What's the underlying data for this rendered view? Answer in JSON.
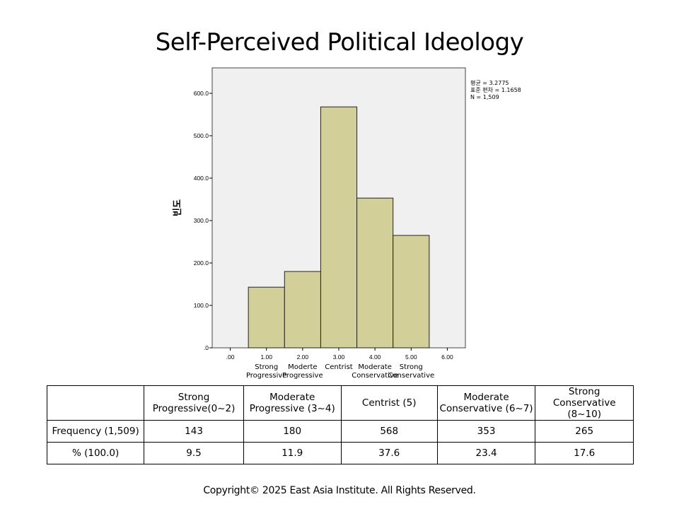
{
  "title": "Self-Perceived Political Ideology",
  "chart_data": {
    "type": "bar",
    "ylabel": "빈도",
    "ylim": [
      0,
      660
    ],
    "xlim": [
      -0.5,
      6.5
    ],
    "yticks": [
      ".0",
      "100.0",
      "200.0",
      "300.0",
      "400.0",
      "500.0",
      "600.0"
    ],
    "xticks": [
      ".00",
      "1.00",
      "2.00",
      "3.00",
      "4.00",
      "5.00",
      "6.00"
    ],
    "bins": [
      {
        "x0": 0.5,
        "x1": 1.5,
        "value": 143
      },
      {
        "x0": 1.5,
        "x1": 2.5,
        "value": 180
      },
      {
        "x0": 2.5,
        "x1": 3.5,
        "value": 568
      },
      {
        "x0": 3.5,
        "x1": 4.5,
        "value": 353
      },
      {
        "x0": 4.5,
        "x1": 5.5,
        "value": 265
      }
    ],
    "category_labels": [
      {
        "center": 1,
        "lines": [
          "Strong",
          "Progressive"
        ]
      },
      {
        "center": 2,
        "lines": [
          "Moderte",
          "Progressive"
        ]
      },
      {
        "center": 3,
        "lines": [
          "Centrist"
        ]
      },
      {
        "center": 4,
        "lines": [
          "Moderate",
          "Conservative"
        ]
      },
      {
        "center": 5,
        "lines": [
          "Strong",
          "Conservative"
        ]
      }
    ],
    "stats": [
      "평균 = 3.2775",
      "표준 편차 = 1.1658",
      "N = 1,509"
    ],
    "bar_color": "#d3cf98",
    "bar_stroke": "#222222",
    "plot_bg": "#f0f0f0",
    "grid": false
  },
  "table": {
    "headers": [
      "",
      "Strong Progressive(0~2)",
      "Moderate Progressive (3~4)",
      "Centrist (5)",
      "Moderate Conservative (6~7)",
      "Strong Conservative (8~10)"
    ],
    "rows": [
      [
        "Frequency (1,509)",
        "143",
        "180",
        "568",
        "353",
        "265"
      ],
      [
        "% (100.0)",
        "9.5",
        "11.9",
        "37.6",
        "23.4",
        "17.6"
      ]
    ]
  },
  "copyright": "Copyright© 2025 East Asia Institute. All Rights Reserved."
}
